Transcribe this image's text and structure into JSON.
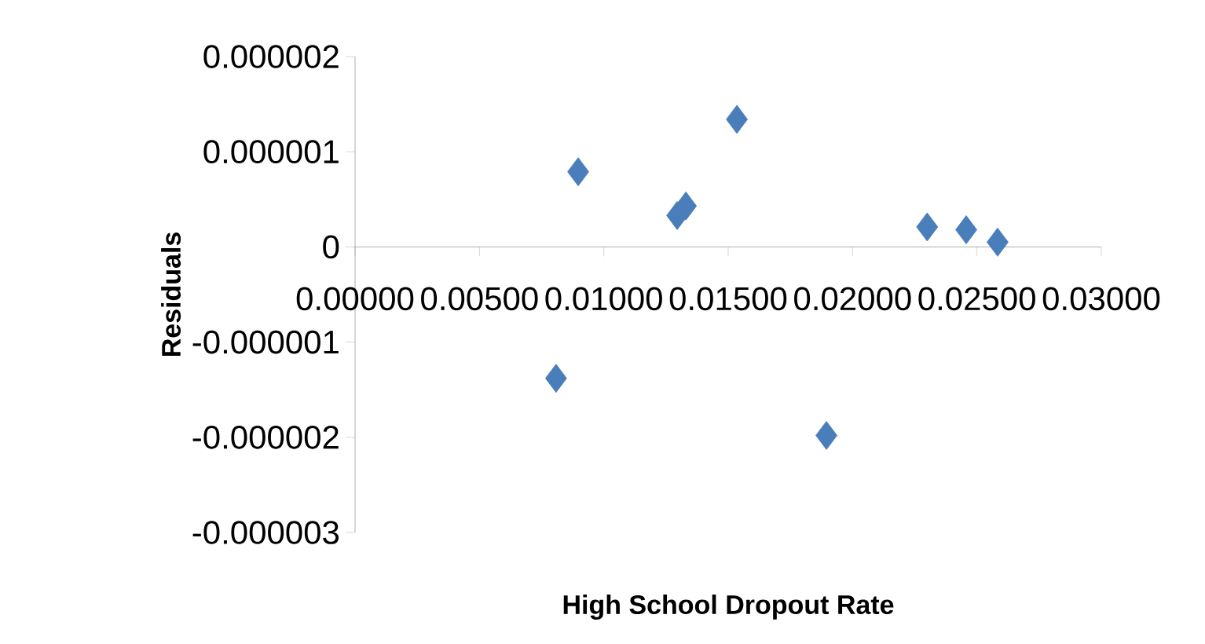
{
  "chart_data": {
    "type": "scatter",
    "xlabel": "High School Dropout Rate",
    "ylabel": "Residuals",
    "x": [
      0.00808,
      0.00897,
      0.01295,
      0.0133,
      0.01535,
      0.01895,
      0.023,
      0.02457,
      0.02583
    ],
    "values": [
      -1.38e-06,
      7.9e-07,
      3.3e-07,
      4.3e-07,
      1.34e-06,
      -1.98e-06,
      2.1e-07,
      1.8e-07,
      5e-08
    ],
    "color": "#4a7ebb",
    "marker": "diamond",
    "grid": false,
    "xlim": [
      0,
      0.03
    ],
    "ylim": [
      -3e-06,
      2e-06
    ],
    "xticks": [
      {
        "value": 0,
        "label": "0.00000"
      },
      {
        "value": 0.005,
        "label": "0.00500"
      },
      {
        "value": 0.01,
        "label": "0.01000"
      },
      {
        "value": 0.015,
        "label": "0.01500"
      },
      {
        "value": 0.02,
        "label": "0.02000"
      },
      {
        "value": 0.025,
        "label": "0.02500"
      },
      {
        "value": 0.03,
        "label": "0.03000"
      }
    ],
    "yticks": [
      {
        "value": -3e-06,
        "label": "-0.000003"
      },
      {
        "value": -2e-06,
        "label": "-0.000002"
      },
      {
        "value": -1e-06,
        "label": "-0.000001"
      },
      {
        "value": 0,
        "label": "0"
      },
      {
        "value": 1e-06,
        "label": "0.000001"
      },
      {
        "value": 2e-06,
        "label": "0.000002"
      }
    ]
  }
}
